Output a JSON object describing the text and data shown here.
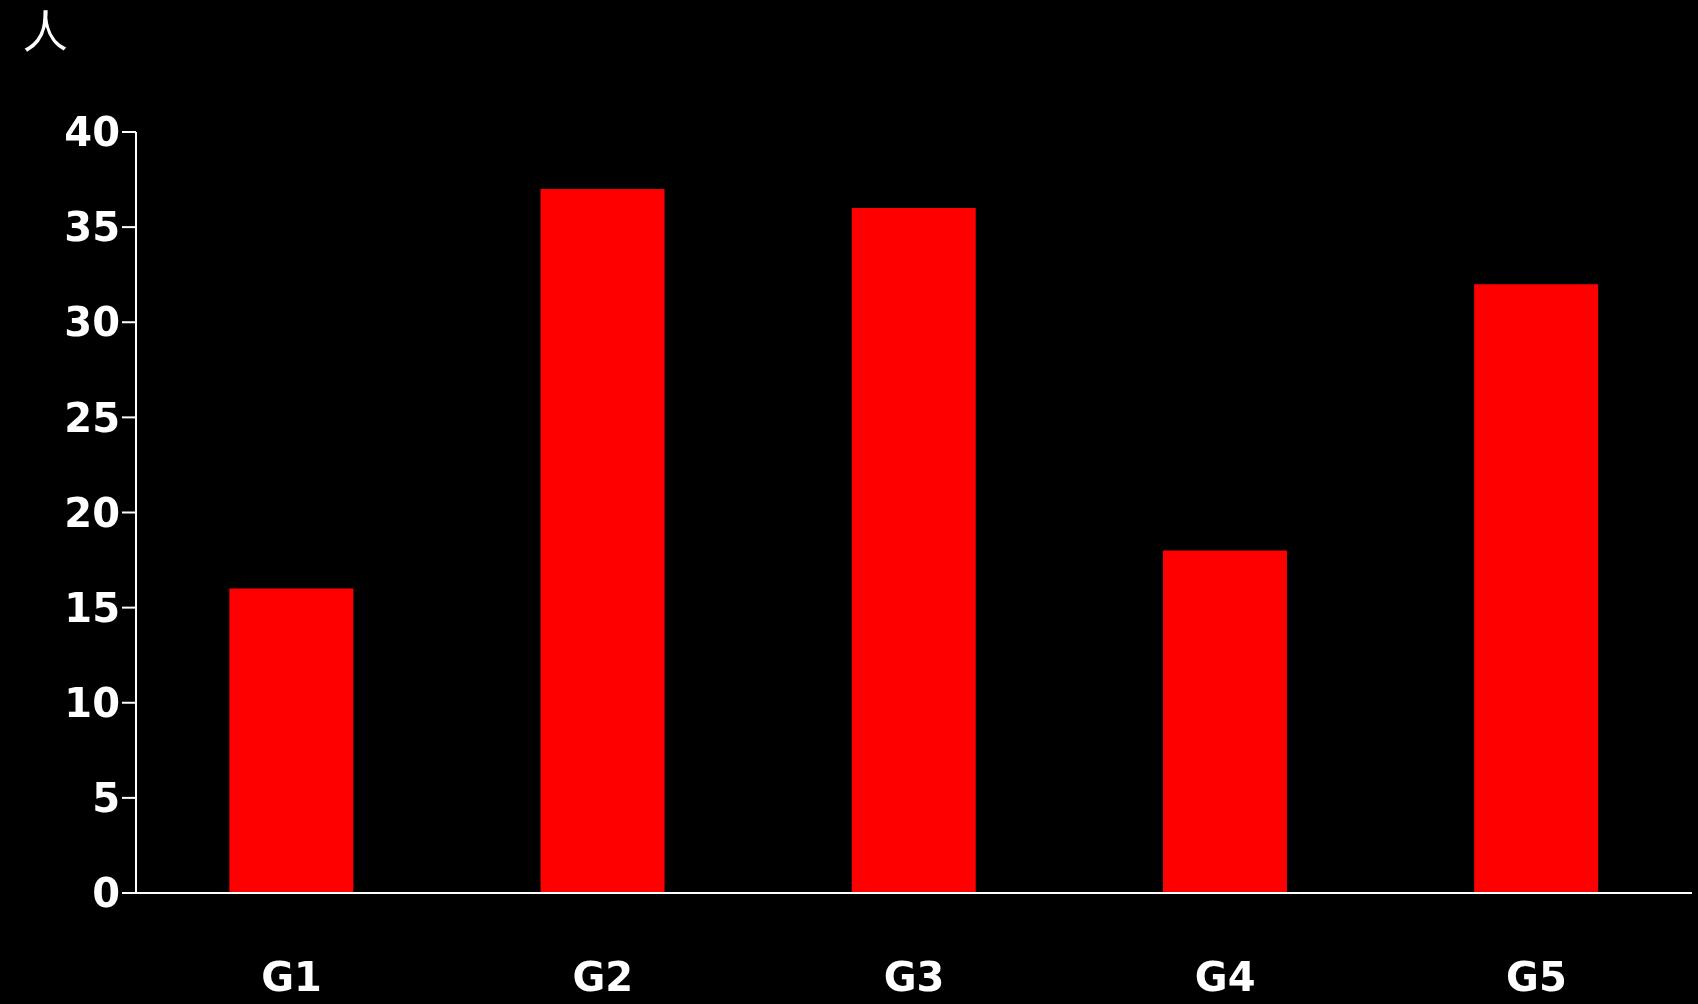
{
  "chart_data": {
    "type": "bar",
    "ylabel": "人",
    "categories": [
      "G1",
      "G2",
      "G3",
      "G4",
      "G5"
    ],
    "values": [
      16,
      37,
      36,
      18,
      32
    ],
    "color": "#ff0000",
    "ylim": [
      0,
      40
    ],
    "yticks": [
      0,
      5,
      10,
      15,
      20,
      25,
      30,
      35,
      40
    ],
    "grid": false
  }
}
